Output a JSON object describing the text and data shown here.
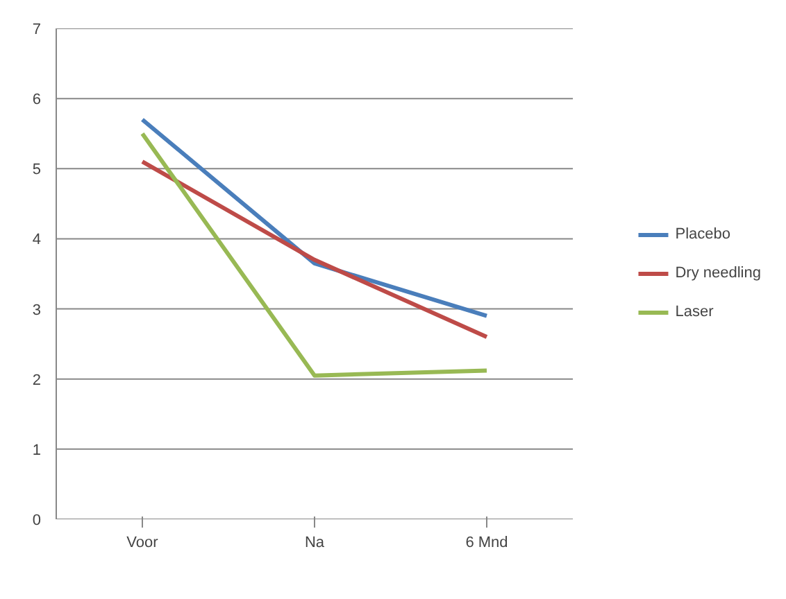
{
  "chart_data": {
    "type": "line",
    "categories": [
      "Voor",
      "Na",
      "6 Mnd"
    ],
    "series": [
      {
        "name": "Placebo",
        "color": "#4a7ebb",
        "values": [
          5.7,
          3.65,
          2.9
        ]
      },
      {
        "name": "Dry needling",
        "color": "#be4b48",
        "values": [
          5.1,
          3.7,
          2.6
        ]
      },
      {
        "name": "Laser",
        "color": "#98b954",
        "values": [
          5.5,
          2.05,
          2.12
        ]
      }
    ],
    "ylim": [
      0,
      7
    ],
    "yticks": [
      0,
      1,
      2,
      3,
      4,
      5,
      6,
      7
    ],
    "grid": "y",
    "legend": "right",
    "marker": "none",
    "line_style": "solid"
  }
}
